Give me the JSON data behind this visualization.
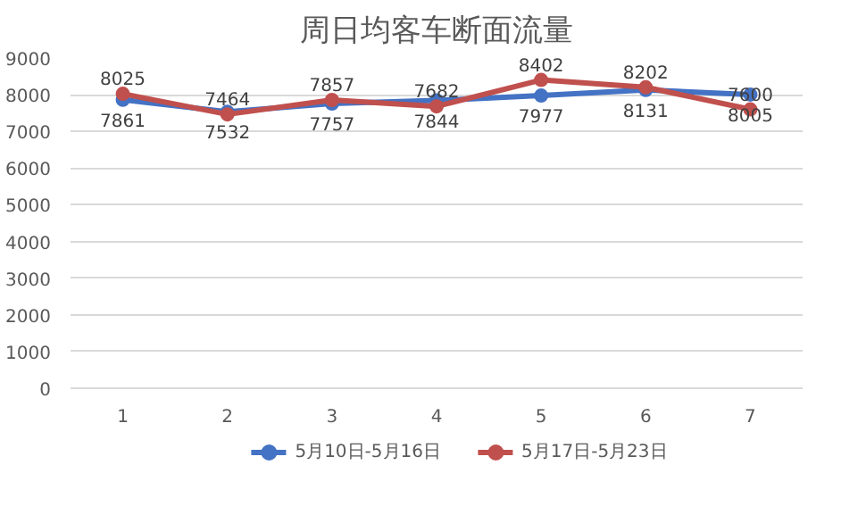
{
  "chart_data": {
    "type": "line",
    "title": "周日均客车断面流量",
    "categories": [
      "1",
      "2",
      "3",
      "4",
      "5",
      "6",
      "7"
    ],
    "series": [
      {
        "name": "5月10日-5月16日",
        "color": "#4472c4",
        "values": [
          7861,
          7532,
          7757,
          7844,
          7977,
          8131,
          8005
        ]
      },
      {
        "name": "5月17日-5月23日",
        "color": "#c0504d",
        "values": [
          8025,
          7464,
          7857,
          7682,
          8402,
          8202,
          7600
        ]
      }
    ],
    "ylim": [
      0,
      9000
    ],
    "yticks": [
      0,
      1000,
      2000,
      3000,
      4000,
      5000,
      6000,
      7000,
      8000,
      9000
    ],
    "grid": "y",
    "legend": "bottom",
    "marker": "circle",
    "line_style": "solid",
    "data_labels": true
  }
}
